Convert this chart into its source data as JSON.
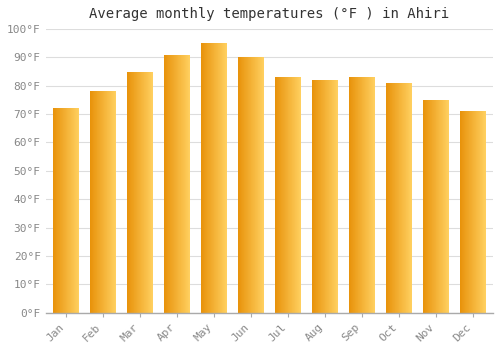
{
  "title": "Average monthly temperatures (°F ) in Ahiri",
  "months": [
    "Jan",
    "Feb",
    "Mar",
    "Apr",
    "May",
    "Jun",
    "Jul",
    "Aug",
    "Sep",
    "Oct",
    "Nov",
    "Dec"
  ],
  "values": [
    72,
    78,
    85,
    91,
    95,
    90,
    83,
    82,
    83,
    81,
    75,
    71
  ],
  "bar_color_left": "#E8920A",
  "bar_color_right": "#FFD060",
  "bar_edge_color": "#CC8800",
  "background_color": "#FFFFFF",
  "grid_color": "#DDDDDD",
  "ylim": [
    0,
    100
  ],
  "ytick_step": 10,
  "title_fontsize": 10,
  "tick_fontsize": 8,
  "font_family": "monospace"
}
